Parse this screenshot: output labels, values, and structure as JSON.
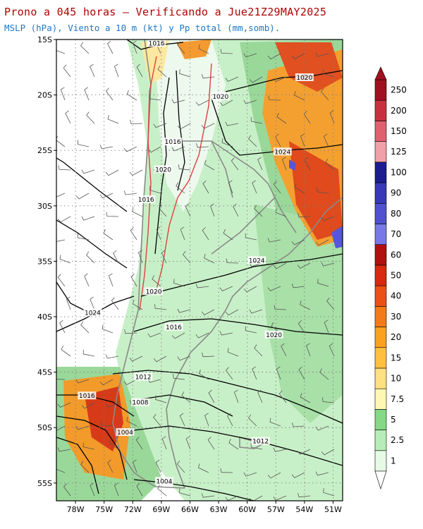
{
  "header": {
    "title": "Prono a 045 horas — Verificando a Jue21Z29MAY2025",
    "subtitle": "MSLP (hPa), Viento a 10 m (kt) y Pp total (mm,somb)."
  },
  "map": {
    "lat_labels": [
      "15S",
      "20S",
      "25S",
      "30S",
      "35S",
      "40S",
      "45S",
      "50S",
      "55S"
    ],
    "lon_labels": [
      "78W",
      "75W",
      "72W",
      "69W",
      "66W",
      "63W",
      "60W",
      "57W",
      "54W",
      "51W"
    ],
    "isobar_labels": [
      {
        "text": "1016",
        "lat": -15.4,
        "lon": -69.5
      },
      {
        "text": "1020",
        "lat": -18.5,
        "lon": -54.0
      },
      {
        "text": "1020",
        "lat": -20.2,
        "lon": -62.8
      },
      {
        "text": "1016",
        "lat": -24.3,
        "lon": -67.8
      },
      {
        "text": "1024",
        "lat": -25.2,
        "lon": -56.3
      },
      {
        "text": "1020",
        "lat": -26.8,
        "lon": -68.8
      },
      {
        "text": "1016",
        "lat": -29.5,
        "lon": -70.6
      },
      {
        "text": "1024",
        "lat": -35.0,
        "lon": -59.0
      },
      {
        "text": "1020",
        "lat": -37.8,
        "lon": -69.8
      },
      {
        "text": "1024",
        "lat": -39.7,
        "lon": -76.2
      },
      {
        "text": "1016",
        "lat": -41.0,
        "lon": -67.7
      },
      {
        "text": "1020",
        "lat": -41.7,
        "lon": -57.2
      },
      {
        "text": "1012",
        "lat": -45.5,
        "lon": -70.9
      },
      {
        "text": "1016",
        "lat": -47.2,
        "lon": -76.8
      },
      {
        "text": "1008",
        "lat": -47.8,
        "lon": -71.2
      },
      {
        "text": "1004",
        "lat": -50.5,
        "lon": -72.8
      },
      {
        "text": "1012",
        "lat": -51.3,
        "lon": -58.6
      },
      {
        "text": "1004",
        "lat": -54.9,
        "lon": -68.7
      }
    ],
    "colors": {
      "ocean": "#ffffff",
      "light_green": "#c4f0c4",
      "green": "#8ed88e",
      "orange": "#f4a030",
      "red": "#d83818",
      "coast": "#8a8a8a",
      "isobar": "#000000",
      "topo": "#e04040"
    }
  },
  "colorbar": {
    "labels": [
      "1",
      "2.5",
      "5",
      "7.5",
      "10",
      "15",
      "20",
      "30",
      "40",
      "50",
      "60",
      "70",
      "80",
      "90",
      "100",
      "125",
      "150",
      "200",
      "250"
    ],
    "colors": [
      "#e6fae6",
      "#b8ecb8",
      "#86d886",
      "#fff7b4",
      "#ffe080",
      "#ffc040",
      "#fca020",
      "#f47a18",
      "#ec5014",
      "#d82810",
      "#b01010",
      "#7878e8",
      "#5050d0",
      "#3838b8",
      "#1c1c90",
      "#f0a0a8",
      "#e06070",
      "#c83040",
      "#a01020"
    ]
  }
}
